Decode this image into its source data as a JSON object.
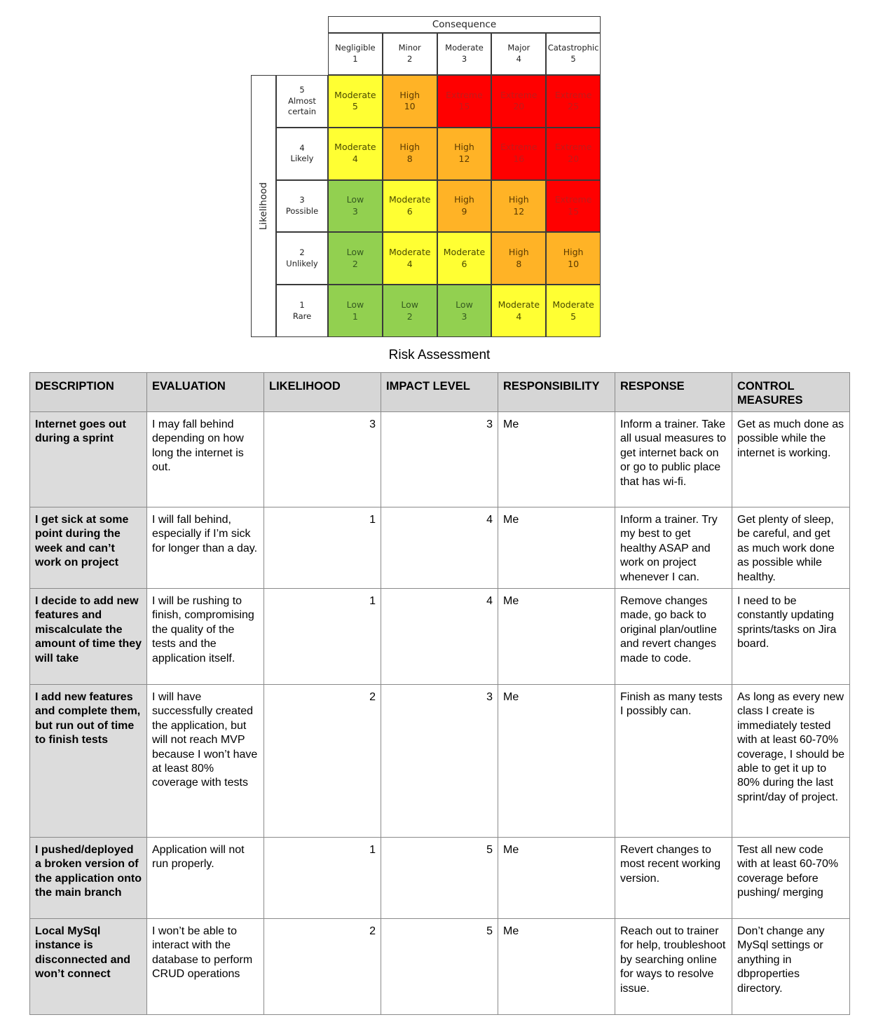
{
  "matrix": {
    "consequence_title": "Consequence",
    "likelihood_title": "Likelihood",
    "consequences": [
      {
        "label": "Negligible",
        "num": "1"
      },
      {
        "label": "Minor",
        "num": "2"
      },
      {
        "label": "Moderate",
        "num": "3"
      },
      {
        "label": "Major",
        "num": "4"
      },
      {
        "label": "Catastrophic",
        "num": "5"
      }
    ],
    "likelihoods": [
      {
        "num": "5",
        "label": "Almost certain"
      },
      {
        "num": "4",
        "label": "Likely"
      },
      {
        "num": "3",
        "label": "Possible"
      },
      {
        "num": "2",
        "label": "Unlikely"
      },
      {
        "num": "1",
        "label": "Rare"
      }
    ],
    "rows": [
      [
        {
          "label": "Moderate",
          "num": "5"
        },
        {
          "label": "High",
          "num": "10"
        },
        {
          "label": "Extreme",
          "num": "15"
        },
        {
          "label": "Extreme",
          "num": "20"
        },
        {
          "label": "Extreme",
          "num": "25"
        }
      ],
      [
        {
          "label": "Moderate",
          "num": "4"
        },
        {
          "label": "High",
          "num": "8"
        },
        {
          "label": "High",
          "num": "12"
        },
        {
          "label": "Extreme",
          "num": "16"
        },
        {
          "label": "Extreme",
          "num": "20"
        }
      ],
      [
        {
          "label": "Low",
          "num": "3"
        },
        {
          "label": "Moderate",
          "num": "6"
        },
        {
          "label": "High",
          "num": "9"
        },
        {
          "label": "High",
          "num": "12"
        },
        {
          "label": "Extreme",
          "num": "15"
        }
      ],
      [
        {
          "label": "Low",
          "num": "2"
        },
        {
          "label": "Moderate",
          "num": "4"
        },
        {
          "label": "Moderate",
          "num": "6"
        },
        {
          "label": "High",
          "num": "8"
        },
        {
          "label": "High",
          "num": "10"
        }
      ],
      [
        {
          "label": "Low",
          "num": "1"
        },
        {
          "label": "Low",
          "num": "2"
        },
        {
          "label": "Low",
          "num": "3"
        },
        {
          "label": "Moderate",
          "num": "4"
        },
        {
          "label": "Moderate",
          "num": "5"
        }
      ]
    ],
    "colors": {
      "Low": "#92d050",
      "Moderate": "#ffff33",
      "High": "#ffb326",
      "Extreme": "#ff0000"
    }
  },
  "subtitle": "Risk Assessment",
  "table": {
    "headers": {
      "description": "DESCRIPTION",
      "evaluation": "EVALUATION",
      "likelihood": "LIKELIHOOD",
      "impact": "IMPACT LEVEL",
      "responsibility": "RESPONSIBILITY",
      "response": "RESPONSE",
      "control": "CONTROL MEASURES"
    },
    "rows": [
      {
        "description": "Internet goes out during a sprint",
        "evaluation": "I may fall behind depending on how long the internet is out.",
        "likelihood": "3",
        "impact": "3",
        "responsibility": "Me",
        "response": "Inform a trainer. Take all usual measures to get internet back on or go to public place that has wi-fi.",
        "control": "Get as much done as possible while the internet is working."
      },
      {
        "description": "I get sick at some point during the week and can’t work on project",
        "evaluation": "I will fall behind, especially if I’m sick for longer than a day.",
        "likelihood": "1",
        "impact": "4",
        "responsibility": "Me",
        "response": "Inform a trainer. Try my best to get healthy ASAP and work on project whenever I can.",
        "control": "Get plenty of sleep, be careful, and get as much work done as possible while healthy."
      },
      {
        "description": "I decide to add new features and miscalculate the amount of time they will take",
        "evaluation": "I will be rushing to finish, compromising the quality of the tests and the application itself.",
        "likelihood": "1",
        "impact": "4",
        "responsibility": "Me",
        "response": "Remove changes made, go back to original plan/outline and revert changes made to code.",
        "control": "I need to be constantly updating sprints/tasks on Jira board."
      },
      {
        "description": "I add new features and complete them, but run out of time to finish tests",
        "evaluation": "I will have successfully created the application, but will not reach MVP because I won’t have at least 80% coverage with tests",
        "likelihood": "2",
        "impact": "3",
        "responsibility": "Me",
        "response": "Finish as many tests I possibly can.",
        "control": "As long as every new class I create is immediately tested with at least 60-70% coverage, I should be able to get it up to 80% during the last sprint/day of project."
      },
      {
        "description": "I pushed/deployed a broken version of the application onto the main branch",
        "evaluation": "Application will not run properly.",
        "likelihood": "1",
        "impact": "5",
        "responsibility": "Me",
        "response": "Revert changes to most recent working version.",
        "control": "Test all new code with at least 60-70% coverage before pushing/ merging"
      },
      {
        "description": "Local MySql instance is disconnected and won’t connect",
        "evaluation": "I won’t be able to interact with the database to perform CRUD operations",
        "likelihood": "2",
        "impact": "5",
        "responsibility": "Me",
        "response": "Reach out to trainer for help, troubleshoot by searching online for ways to resolve issue.",
        "control": "Don’t change any MySql settings or anything in dbproperties directory."
      }
    ]
  }
}
